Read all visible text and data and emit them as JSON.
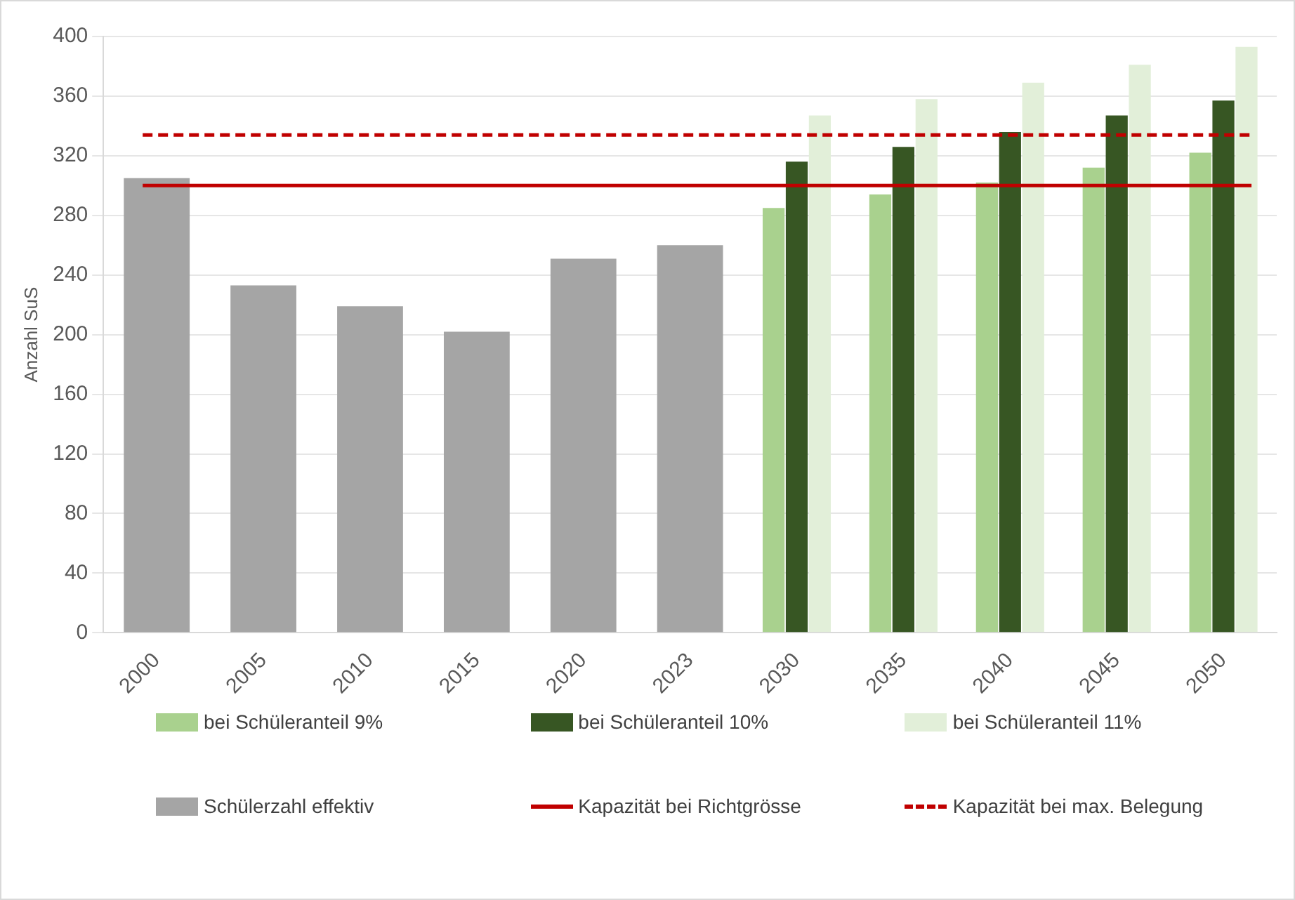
{
  "chart_data": {
    "type": "bar",
    "ylabel": "Anzahl SuS",
    "categories": [
      "2000",
      "2005",
      "2010",
      "2015",
      "2020",
      "2023",
      "2030",
      "2035",
      "2040",
      "2045",
      "2050"
    ],
    "series": [
      {
        "name": "bei Schüleranteil 9%",
        "color": "#a9d18e",
        "values": [
          null,
          null,
          null,
          null,
          null,
          null,
          285,
          294,
          302,
          312,
          322
        ]
      },
      {
        "name": "bei Schüleranteil 10%",
        "color": "#375623",
        "values": [
          null,
          null,
          null,
          null,
          null,
          null,
          316,
          326,
          336,
          347,
          357
        ]
      },
      {
        "name": "bei Schüleranteil 11%",
        "color": "#e2efd9",
        "values": [
          null,
          null,
          null,
          null,
          null,
          null,
          347,
          358,
          369,
          381,
          393
        ]
      },
      {
        "name": "Schülerzahl effektiv",
        "color": "#a5a5a5",
        "values": [
          305,
          233,
          219,
          202,
          251,
          260,
          null,
          null,
          null,
          null,
          null
        ]
      }
    ],
    "ref_lines": [
      {
        "axis": "y",
        "value": 300,
        "label": "Kapazität bei Richtgrösse",
        "color": "#c00000",
        "line_style": "solid"
      },
      {
        "axis": "y",
        "value": 334,
        "label": "Kapazität bei max. Belegung",
        "color": "#c00000",
        "line_style": "dashed"
      }
    ],
    "ylim": [
      0,
      400
    ],
    "yticks": [
      0,
      40,
      80,
      120,
      160,
      200,
      240,
      280,
      320,
      360,
      400
    ],
    "grid": "y",
    "legend": "bottom"
  }
}
